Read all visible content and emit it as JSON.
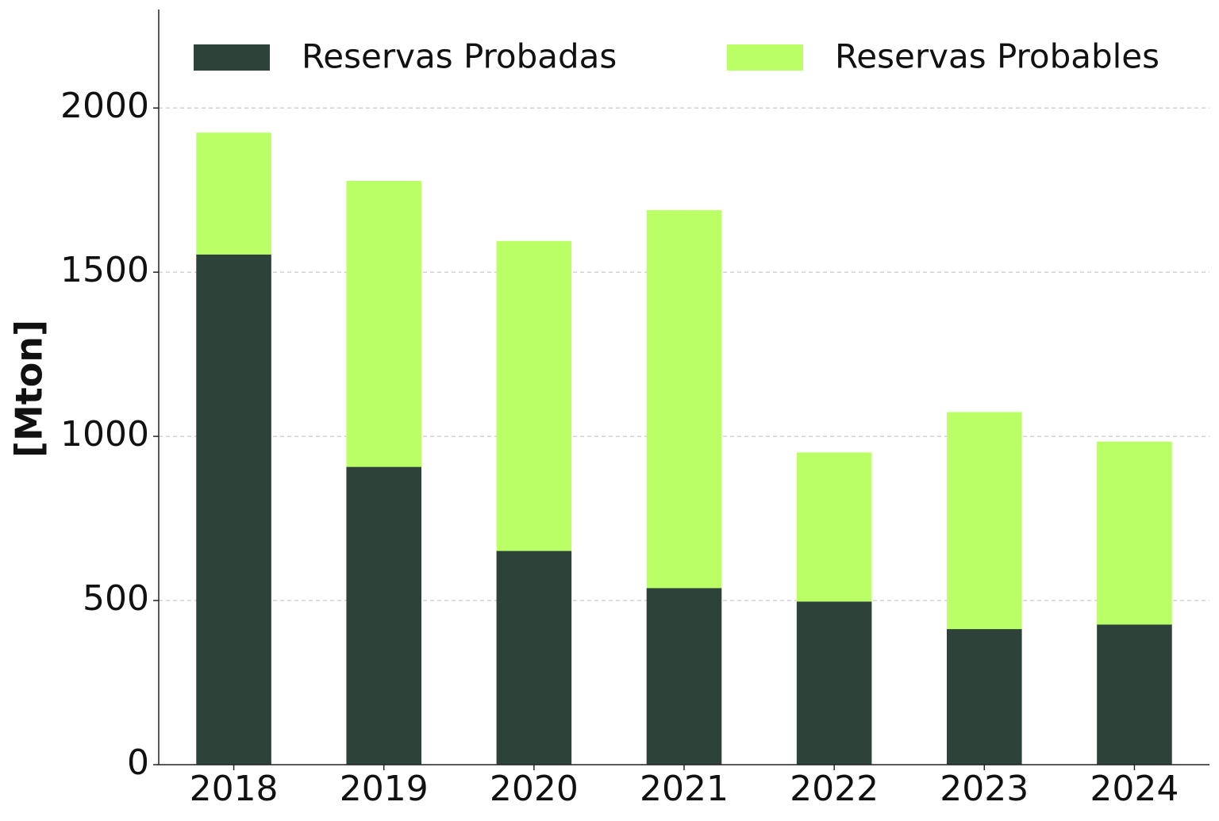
{
  "chart_data": {
    "type": "stacked_bar",
    "y_label": "[Mton]",
    "categories": [
      "2018",
      "2019",
      "2020",
      "2021",
      "2022",
      "2023",
      "2024"
    ],
    "series": [
      {
        "name": "Reservas Probadas",
        "color": "#2d4239",
        "values": [
          1554,
          907,
          651,
          538,
          497,
          413,
          427
        ]
      },
      {
        "name": "Reservas Probables",
        "color": "#bbff66",
        "values": [
          371,
          871,
          944,
          1151,
          454,
          661,
          557
        ]
      }
    ],
    "ylim": [
      0,
      2300
    ],
    "yticks": [
      0,
      500,
      1000,
      1500,
      2000
    ],
    "grid": true,
    "legend": "top"
  }
}
